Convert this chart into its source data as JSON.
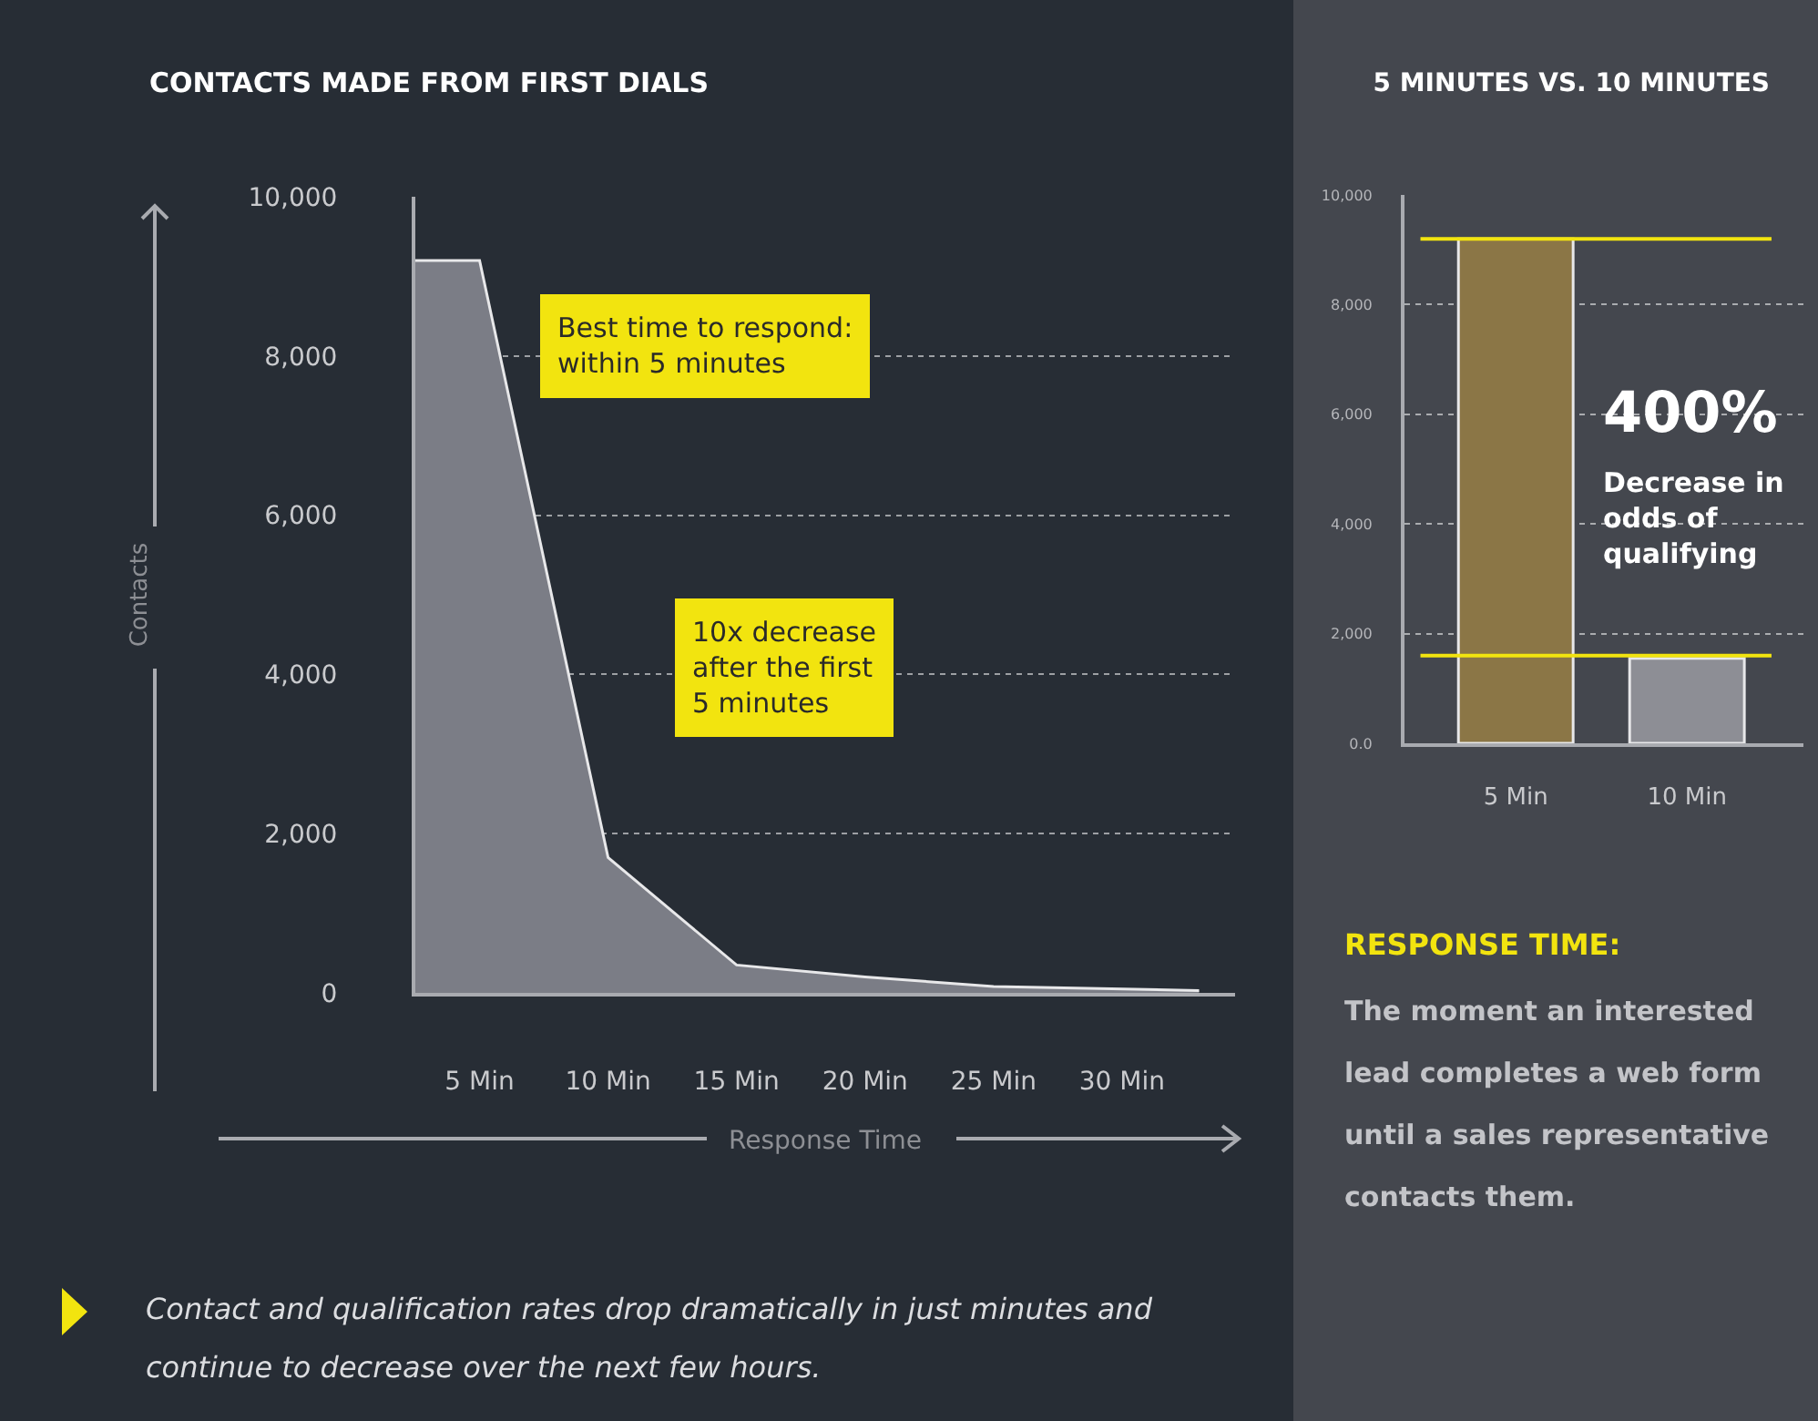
{
  "chart_data": [
    {
      "type": "area",
      "title": "CONTACTS MADE FROM FIRST DIALS",
      "xlabel": "Response Time",
      "ylabel": "Contacts",
      "x": [
        2.5,
        5,
        10,
        15,
        20,
        25,
        33
      ],
      "values": [
        9200,
        9200,
        1700,
        350,
        200,
        80,
        30
      ],
      "color": "#7b7d86",
      "xlim": [
        2.5,
        34.4
      ],
      "xticks": [
        {
          "value": 5,
          "label": "5 Min"
        },
        {
          "value": 10,
          "label": "10 Min"
        },
        {
          "value": 15,
          "label": "15 Min"
        },
        {
          "value": 20,
          "label": "20 Min"
        },
        {
          "value": 25,
          "label": "25 Min"
        },
        {
          "value": 30,
          "label": "30 Min"
        }
      ],
      "ylim": [
        0,
        10000
      ],
      "yticks": [
        0,
        {
          "value": 2000,
          "label": "2,000"
        },
        {
          "value": 4000,
          "label": "4,000"
        },
        {
          "value": 6000,
          "label": "6,000"
        },
        {
          "value": 8000,
          "label": "8,000"
        },
        {
          "value": 10000,
          "label": "10,000"
        }
      ],
      "grid": "y",
      "annotations": [
        "Best time to respond: within 5 minutes",
        "10x decrease after the first 5 minutes",
        "Contact and qualification rates drop dramatically in just minutes and continue to decrease over the next few hours."
      ]
    },
    {
      "type": "bar",
      "title": "5 MINUTES VS. 10 MINUTES",
      "categories": [
        "5 Min",
        "10 Min"
      ],
      "values": [
        9200,
        1550
      ],
      "colors": [
        "#8b7646",
        "#8d8e95"
      ],
      "ylim": [
        0,
        10000
      ],
      "yticks": [
        {
          "value": 0,
          "label": "0.0"
        },
        {
          "value": 2000,
          "label": "2,000"
        },
        {
          "value": 4000,
          "label": "4,000"
        },
        {
          "value": 6000,
          "label": "6,000"
        },
        {
          "value": 8000,
          "label": "8,000"
        },
        {
          "value": 10000,
          "label": "10,000"
        }
      ],
      "grid": "y",
      "ref_lines": [
        {
          "axis": "y",
          "value": 9200,
          "color": "#f2e40f"
        },
        {
          "axis": "y",
          "value": 1600,
          "color": "#f2e40f"
        }
      ],
      "annotations": [
        "400%",
        "Decrease in odds of qualifying",
        "RESPONSE TIME:",
        "The moment an interested lead completes a web form until a sales representative contacts them."
      ]
    }
  ]
}
